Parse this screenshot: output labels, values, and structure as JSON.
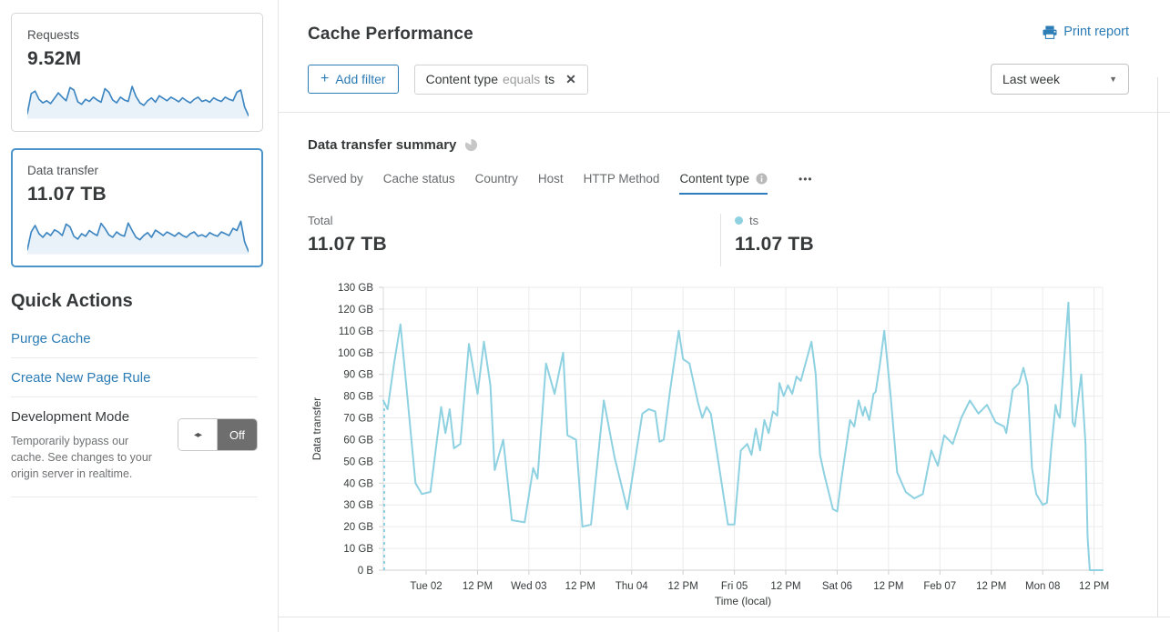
{
  "header": {
    "title": "Cache Performance",
    "print_label": "Print report"
  },
  "filters": {
    "add_label": "Add filter",
    "chip": {
      "field": "Content type",
      "operator": "equals",
      "value": "ts"
    }
  },
  "time_range": {
    "selected": "Last week"
  },
  "icons": {
    "add": "+",
    "close": "✕",
    "caret": "▼",
    "ellipsis": "•••",
    "toggle_arrows": "◂▸"
  },
  "sidebar": {
    "cards": [
      {
        "label": "Requests",
        "value": "9.52M",
        "selected": false,
        "sparkline": [
          12,
          68,
          75,
          52,
          42,
          48,
          40,
          55,
          70,
          58,
          48,
          85,
          78,
          45,
          38,
          52,
          46,
          58,
          50,
          44,
          82,
          72,
          50,
          42,
          58,
          50,
          46,
          88,
          60,
          42,
          35,
          48,
          56,
          44,
          62,
          55,
          48,
          58,
          52,
          45,
          56,
          48,
          42,
          52,
          58,
          46,
          50,
          44,
          56,
          50,
          46,
          58,
          52,
          48,
          72,
          78,
          30,
          6
        ]
      },
      {
        "label": "Data transfer",
        "value": "11.07 TB",
        "selected": true,
        "sparkline": [
          10,
          60,
          78,
          55,
          45,
          58,
          50,
          66,
          60,
          50,
          82,
          74,
          48,
          40,
          55,
          48,
          64,
          56,
          50,
          84,
          70,
          52,
          45,
          60,
          52,
          48,
          85,
          64,
          45,
          38,
          50,
          58,
          45,
          65,
          58,
          50,
          60,
          54,
          48,
          58,
          50,
          45,
          55,
          60,
          48,
          52,
          46,
          58,
          52,
          48,
          60,
          55,
          50,
          70,
          64,
          90,
          32,
          5
        ]
      }
    ],
    "quick_actions": {
      "title": "Quick Actions",
      "links": [
        {
          "label": "Purge Cache"
        },
        {
          "label": "Create New Page Rule"
        }
      ],
      "dev_mode": {
        "title": "Development Mode",
        "description": "Temporarily bypass our cache. See changes to your origin server in realtime.",
        "toggle_state": "Off"
      }
    }
  },
  "summary": {
    "title": "Data transfer summary",
    "tabs": [
      {
        "label": "Served by"
      },
      {
        "label": "Cache status"
      },
      {
        "label": "Country"
      },
      {
        "label": "Host"
      },
      {
        "label": "HTTP Method"
      },
      {
        "label": "Content type",
        "active": true,
        "has_info": true
      }
    ],
    "total": {
      "label": "Total",
      "value": "11.07 TB"
    },
    "breakdown": [
      {
        "name": "ts",
        "value": "11.07 TB",
        "color": "#8ed1e1"
      }
    ]
  },
  "chart_data": {
    "type": "line",
    "title": "Data transfer summary",
    "xlabel": "Time (local)",
    "ylabel": "Data transfer",
    "ylim": [
      0,
      130
    ],
    "grid": true,
    "y_unit": "GB",
    "y_ticks": [
      [
        0,
        "0 B"
      ],
      [
        10,
        "10 GB"
      ],
      [
        20,
        "20 GB"
      ],
      [
        30,
        "30 GB"
      ],
      [
        40,
        "40 GB"
      ],
      [
        50,
        "50 GB"
      ],
      [
        60,
        "60 GB"
      ],
      [
        70,
        "70 GB"
      ],
      [
        80,
        "80 GB"
      ],
      [
        90,
        "90 GB"
      ],
      [
        100,
        "100 GB"
      ],
      [
        110,
        "110 GB"
      ],
      [
        120,
        "120 GB"
      ],
      [
        130,
        "130 GB"
      ]
    ],
    "x_total_hours": 168,
    "x_ticks": [
      [
        10,
        "Tue 02"
      ],
      [
        22,
        "12 PM"
      ],
      [
        34,
        "Wed 03"
      ],
      [
        46,
        "12 PM"
      ],
      [
        58,
        "Thu 04"
      ],
      [
        70,
        "12 PM"
      ],
      [
        82,
        "Fri 05"
      ],
      [
        94,
        "12 PM"
      ],
      [
        106,
        "Sat 06"
      ],
      [
        118,
        "12 PM"
      ],
      [
        130,
        "Feb 07"
      ],
      [
        142,
        "12 PM"
      ],
      [
        154,
        "Mon 08"
      ],
      [
        166,
        "12 PM"
      ]
    ],
    "series": [
      {
        "name": "ts",
        "color": "#8ed1e1",
        "unit": "GB",
        "leading_dashed": true,
        "points": [
          [
            0,
            78
          ],
          [
            1,
            74
          ],
          [
            2.5,
            95
          ],
          [
            4,
            113
          ],
          [
            5.5,
            82
          ],
          [
            7.5,
            40
          ],
          [
            9,
            35
          ],
          [
            11,
            36
          ],
          [
            13.5,
            75
          ],
          [
            14.5,
            63
          ],
          [
            15.5,
            74
          ],
          [
            16.5,
            56
          ],
          [
            18,
            58
          ],
          [
            20,
            104
          ],
          [
            22,
            81
          ],
          [
            23.5,
            105
          ],
          [
            25,
            85
          ],
          [
            26,
            46
          ],
          [
            28,
            60
          ],
          [
            30,
            23
          ],
          [
            33,
            22
          ],
          [
            35,
            47
          ],
          [
            36,
            42
          ],
          [
            38,
            95
          ],
          [
            40,
            81
          ],
          [
            42,
            100
          ],
          [
            43,
            62
          ],
          [
            45,
            60
          ],
          [
            46.5,
            20
          ],
          [
            48.5,
            21
          ],
          [
            51.5,
            78
          ],
          [
            54,
            52
          ],
          [
            57,
            28
          ],
          [
            60.5,
            72
          ],
          [
            62,
            74
          ],
          [
            63.5,
            73
          ],
          [
            64.5,
            59
          ],
          [
            65.5,
            60
          ],
          [
            67,
            83
          ],
          [
            69,
            110
          ],
          [
            70,
            97
          ],
          [
            71.5,
            95
          ],
          [
            73.5,
            77
          ],
          [
            74.5,
            70
          ],
          [
            75.5,
            75
          ],
          [
            76.5,
            72
          ],
          [
            78,
            53
          ],
          [
            80.5,
            21
          ],
          [
            82,
            21
          ],
          [
            83.5,
            55
          ],
          [
            85,
            58
          ],
          [
            86,
            53
          ],
          [
            87,
            65
          ],
          [
            88,
            55
          ],
          [
            89,
            69
          ],
          [
            90,
            63
          ],
          [
            91,
            73
          ],
          [
            92,
            71
          ],
          [
            92.5,
            86
          ],
          [
            93.5,
            80
          ],
          [
            94.5,
            85
          ],
          [
            95.5,
            81
          ],
          [
            96.5,
            89
          ],
          [
            97.5,
            87
          ],
          [
            100,
            105
          ],
          [
            101,
            90
          ],
          [
            102,
            53
          ],
          [
            103,
            44
          ],
          [
            105,
            28
          ],
          [
            106,
            27
          ],
          [
            107,
            42
          ],
          [
            109,
            69
          ],
          [
            110,
            66
          ],
          [
            111,
            78
          ],
          [
            112,
            71
          ],
          [
            112.5,
            75
          ],
          [
            113.5,
            69
          ],
          [
            114.5,
            81
          ],
          [
            115,
            82
          ],
          [
            116,
            95
          ],
          [
            117,
            110
          ],
          [
            118.5,
            80
          ],
          [
            120,
            45
          ],
          [
            122,
            36
          ],
          [
            124,
            33
          ],
          [
            126,
            35
          ],
          [
            128,
            55
          ],
          [
            129.5,
            48
          ],
          [
            131,
            62
          ],
          [
            133,
            58
          ],
          [
            135,
            70
          ],
          [
            137,
            78
          ],
          [
            139,
            72
          ],
          [
            141,
            76
          ],
          [
            143,
            68
          ],
          [
            145,
            66
          ],
          [
            145.5,
            63
          ],
          [
            147,
            83
          ],
          [
            148.5,
            86
          ],
          [
            149.5,
            93
          ],
          [
            150.5,
            85
          ],
          [
            151.5,
            47
          ],
          [
            152.5,
            35
          ],
          [
            154,
            30
          ],
          [
            155,
            31
          ],
          [
            156,
            56
          ],
          [
            157,
            76
          ],
          [
            157.5,
            72
          ],
          [
            158,
            70
          ],
          [
            160,
            123
          ],
          [
            161,
            68
          ],
          [
            161.5,
            66
          ],
          [
            163,
            90
          ],
          [
            164,
            58
          ],
          [
            164.5,
            15
          ],
          [
            165,
            0
          ],
          [
            168,
            0
          ]
        ]
      }
    ]
  },
  "colors": {
    "accent": "#2c7cb5",
    "chart_line": "#8ed1e1",
    "sparkline": "#3e86c1",
    "sparkline_fill": "#e9f2f9",
    "selected_card_border": "#4a94ca",
    "tab_underline": "#2f7bbf"
  }
}
